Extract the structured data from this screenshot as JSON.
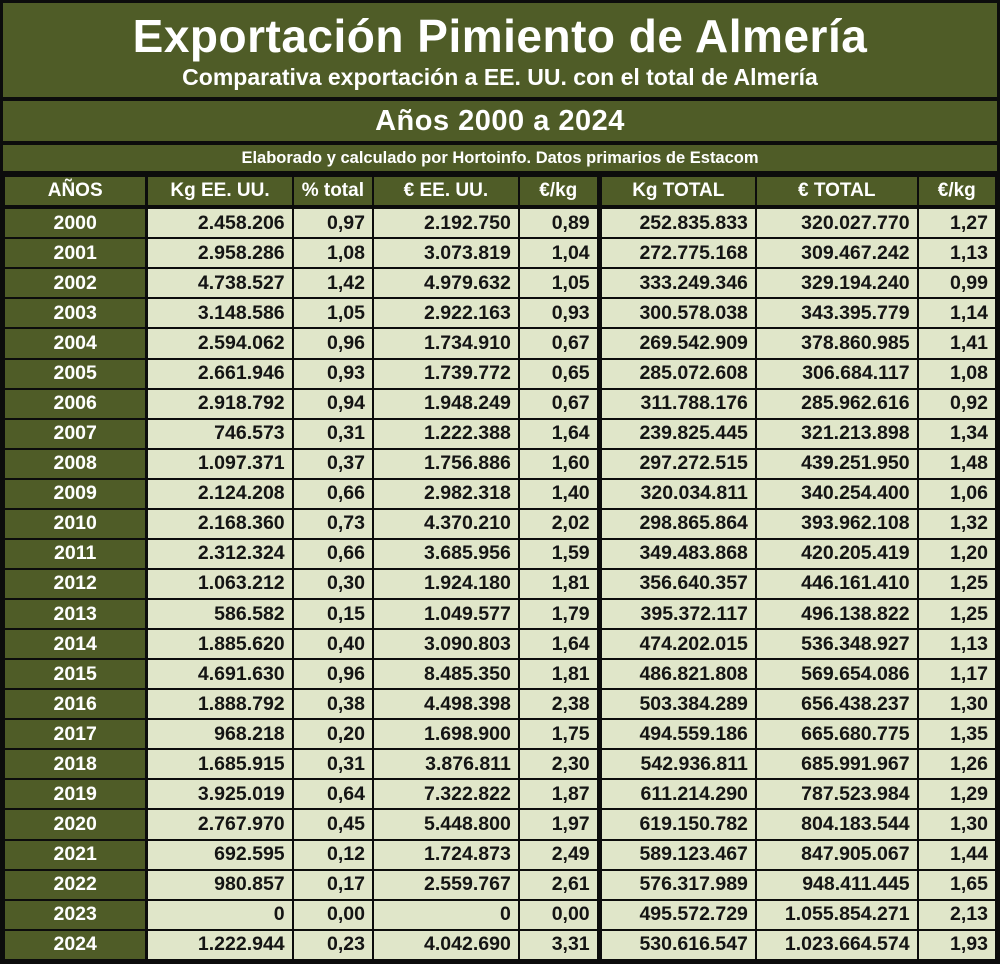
{
  "header": {
    "title": "Exportación Pimiento de Almería",
    "subtitle": "Comparativa exportación a EE. UU. con el total de Almería",
    "period": "Años 2000 a 2024",
    "credit": "Elaborado y calculado por Hortoinfo. Datos primarios de Estacom"
  },
  "colors": {
    "olive": "#4f5c27",
    "cell_bg": "#e0e6c9",
    "line": "#0c0c0c",
    "text_light": "#ffffff",
    "text_dark": "#141414"
  },
  "chart_data": {
    "type": "table",
    "title": "Exportación Pimiento de Almería",
    "subtitle": "Comparativa exportación a EE. UU. con el total de Almería — Años 2000 a 2024",
    "columns": [
      "AÑOS",
      "Kg EE. UU.",
      "% total",
      "€ EE. UU.",
      "€/kg",
      "Kg TOTAL",
      "€ TOTAL",
      "€/kg"
    ],
    "rows": [
      [
        "2000",
        "2.458.206",
        "0,97",
        "2.192.750",
        "0,89",
        "252.835.833",
        "320.027.770",
        "1,27"
      ],
      [
        "2001",
        "2.958.286",
        "1,08",
        "3.073.819",
        "1,04",
        "272.775.168",
        "309.467.242",
        "1,13"
      ],
      [
        "2002",
        "4.738.527",
        "1,42",
        "4.979.632",
        "1,05",
        "333.249.346",
        "329.194.240",
        "0,99"
      ],
      [
        "2003",
        "3.148.586",
        "1,05",
        "2.922.163",
        "0,93",
        "300.578.038",
        "343.395.779",
        "1,14"
      ],
      [
        "2004",
        "2.594.062",
        "0,96",
        "1.734.910",
        "0,67",
        "269.542.909",
        "378.860.985",
        "1,41"
      ],
      [
        "2005",
        "2.661.946",
        "0,93",
        "1.739.772",
        "0,65",
        "285.072.608",
        "306.684.117",
        "1,08"
      ],
      [
        "2006",
        "2.918.792",
        "0,94",
        "1.948.249",
        "0,67",
        "311.788.176",
        "285.962.616",
        "0,92"
      ],
      [
        "2007",
        "746.573",
        "0,31",
        "1.222.388",
        "1,64",
        "239.825.445",
        "321.213.898",
        "1,34"
      ],
      [
        "2008",
        "1.097.371",
        "0,37",
        "1.756.886",
        "1,60",
        "297.272.515",
        "439.251.950",
        "1,48"
      ],
      [
        "2009",
        "2.124.208",
        "0,66",
        "2.982.318",
        "1,40",
        "320.034.811",
        "340.254.400",
        "1,06"
      ],
      [
        "2010",
        "2.168.360",
        "0,73",
        "4.370.210",
        "2,02",
        "298.865.864",
        "393.962.108",
        "1,32"
      ],
      [
        "2011",
        "2.312.324",
        "0,66",
        "3.685.956",
        "1,59",
        "349.483.868",
        "420.205.419",
        "1,20"
      ],
      [
        "2012",
        "1.063.212",
        "0,30",
        "1.924.180",
        "1,81",
        "356.640.357",
        "446.161.410",
        "1,25"
      ],
      [
        "2013",
        "586.582",
        "0,15",
        "1.049.577",
        "1,79",
        "395.372.117",
        "496.138.822",
        "1,25"
      ],
      [
        "2014",
        "1.885.620",
        "0,40",
        "3.090.803",
        "1,64",
        "474.202.015",
        "536.348.927",
        "1,13"
      ],
      [
        "2015",
        "4.691.630",
        "0,96",
        "8.485.350",
        "1,81",
        "486.821.808",
        "569.654.086",
        "1,17"
      ],
      [
        "2016",
        "1.888.792",
        "0,38",
        "4.498.398",
        "2,38",
        "503.384.289",
        "656.438.237",
        "1,30"
      ],
      [
        "2017",
        "968.218",
        "0,20",
        "1.698.900",
        "1,75",
        "494.559.186",
        "665.680.775",
        "1,35"
      ],
      [
        "2018",
        "1.685.915",
        "0,31",
        "3.876.811",
        "2,30",
        "542.936.811",
        "685.991.967",
        "1,26"
      ],
      [
        "2019",
        "3.925.019",
        "0,64",
        "7.322.822",
        "1,87",
        "611.214.290",
        "787.523.984",
        "1,29"
      ],
      [
        "2020",
        "2.767.970",
        "0,45",
        "5.448.800",
        "1,97",
        "619.150.782",
        "804.183.544",
        "1,30"
      ],
      [
        "2021",
        "692.595",
        "0,12",
        "1.724.873",
        "2,49",
        "589.123.467",
        "847.905.067",
        "1,44"
      ],
      [
        "2022",
        "980.857",
        "0,17",
        "2.559.767",
        "2,61",
        "576.317.989",
        "948.411.445",
        "1,65"
      ],
      [
        "2023",
        "0",
        "0,00",
        "0",
        "0,00",
        "495.572.729",
        "1.055.854.271",
        "2,13"
      ],
      [
        "2024",
        "1.222.944",
        "0,23",
        "4.042.690",
        "3,31",
        "530.616.547",
        "1.023.664.574",
        "1,93"
      ]
    ]
  }
}
